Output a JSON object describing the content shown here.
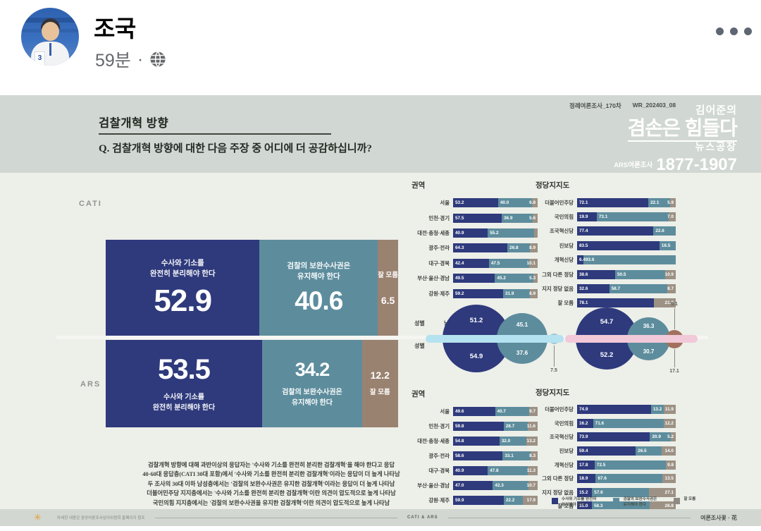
{
  "post": {
    "author": "조국",
    "time": "59분",
    "separator": "·"
  },
  "header": {
    "section_title": "검찰개혁 방향",
    "question": "Q. 검찰개혁 방향에 대한 다음 주장 중 어디에 더 공감하십니까?",
    "survey_series": "정례여론조사_170차",
    "survey_code": "WR_202403_08",
    "logo": {
      "line1": "김어준의",
      "line2": "겸손은 힘들다",
      "line3": "뉴스공장",
      "ars_label": "ARS여론조사",
      "phone": "1877-1907"
    }
  },
  "modes": {
    "cati": "CATI",
    "ars": "ARS"
  },
  "sections": {
    "region": "권역",
    "party": "정당지지도",
    "gender": "성별"
  },
  "gender_labels": {
    "male": "남성",
    "female": "여성"
  },
  "legend": [
    {
      "color": "navy",
      "label_line1": "수사와 기소를 완전히",
      "label_line2": "분리해야 한다"
    },
    {
      "color": "teal",
      "label_line1": "검찰의 보완수사권은",
      "label_line2": "유지해야 한다"
    },
    {
      "color": "gray",
      "label_line1": "잘 모름",
      "label_line2": ""
    }
  ],
  "summary_lines": [
    "검찰개혁 방향에 대해 과반이상의 응답자는 '수사와 기소를 완전히 분리한 검찰개혁'을 해야 한다고 응답",
    "40·60대 응답층(CATI 30대 포함)에서 '수사와 기소를 완전히 분리한 검찰개혁'이라는 응답이 더 높게 나타남",
    "두 조사의 30대 이하 남성층에서는 '검찰의 보완수사권은 유지한 검찰개혁'이라는 응답이 더 높게 나타남",
    "더불어민주당 지지층에서는 '수사와 기소를 완전히 분리한 검찰개혁'이란 의견이 압도적으로 높게 나타남",
    "국민의힘 지지층에서는 '검찰의 보완수사권을 유지한 검찰개혁'이란 의견이 압도적으로 높게 나타남"
  ],
  "footer": {
    "left_note": "자세한 내용은 중앙여론조사심의위원회 홈페이지 참조",
    "center": "CATI & ARS",
    "right": "여론조사꽃 · 花"
  },
  "colors": {
    "navy": "#2e3a7c",
    "teal": "#5d8d9d",
    "brown": "#9a8270",
    "gray3": "#9c9184",
    "legend_gray": "#8f8a83",
    "stripe_cati": "#b5e2f0",
    "stripe_ars": "#f1c9d9",
    "small_cati": "#9fc6d2",
    "small_ars": "#a2705e",
    "sun": "#e2a23b"
  },
  "chart_data": {
    "overall": {
      "type": "bar",
      "stacked": true,
      "options": [
        {
          "text_line1": "수사와 기소를",
          "text_line2": "완전히 분리해야 한다"
        },
        {
          "text_line1": "검찰의 보완수사권은",
          "text_line2": "유지해야 한다"
        },
        {
          "text_line1": "잘 모름",
          "text_line2": ""
        }
      ],
      "cati": [
        52.9,
        40.6,
        6.5
      ],
      "ars": [
        53.5,
        34.2,
        12.2
      ]
    },
    "region": {
      "type": "bar",
      "stacked": true,
      "title": "권역",
      "categories": [
        "서울",
        "인천·경기",
        "대전·충청·세종",
        "광주·전라",
        "대구·경북",
        "부산·울산·경남",
        "강원·제주"
      ],
      "cati": [
        [
          53.2,
          40.0,
          6.8
        ],
        [
          57.5,
          36.9,
          5.6
        ],
        [
          40.9,
          55.2,
          3.9
        ],
        [
          64.3,
          26.8,
          8.9
        ],
        [
          42.4,
          47.5,
          10.1
        ],
        [
          49.5,
          45.2,
          5.3
        ],
        [
          59.2,
          31.9,
          8.9
        ]
      ],
      "ars": [
        [
          49.6,
          40.7,
          9.7
        ],
        [
          59.8,
          28.7,
          11.6
        ],
        [
          54.8,
          32.0,
          13.2
        ],
        [
          58.6,
          33.1,
          8.3
        ],
        [
          40.9,
          47.8,
          11.3
        ],
        [
          47.0,
          42.3,
          10.7
        ],
        [
          59.9,
          22.2,
          17.9
        ]
      ]
    },
    "party": {
      "type": "bar",
      "stacked": true,
      "title": "정당지지도",
      "categories": [
        "더불어민주당",
        "국민의힘",
        "조국혁신당",
        "진보당",
        "개혁신당",
        "그외 다른 정당",
        "지지 정당 없음",
        "잘 모름"
      ],
      "cati": [
        [
          72.1,
          22.1,
          5.9
        ],
        [
          19.9,
          73.1,
          7.0
        ],
        [
          77.4,
          22.6,
          0
        ],
        [
          83.5,
          16.5,
          0
        ],
        [
          6.4,
          93.6,
          0
        ],
        [
          38.6,
          50.5,
          10.9
        ],
        [
          32.6,
          58.7,
          8.7
        ],
        [
          78.1,
          0,
          21.9
        ]
      ],
      "ars": [
        [
          74.9,
          13.2,
          11.9
        ],
        [
          16.2,
          71.6,
          12.2
        ],
        [
          73.9,
          20.9,
          5.2
        ],
        [
          59.4,
          26.5,
          14.0
        ],
        [
          17.8,
          72.5,
          9.8
        ],
        [
          18.9,
          67.6,
          13.5
        ],
        [
          15.2,
          57.6,
          27.1
        ],
        [
          15.0,
          58.3,
          26.8
        ]
      ]
    },
    "gender": {
      "type": "bubble",
      "title": "성별",
      "categories": [
        "남성",
        "여성"
      ],
      "cati": {
        "male": [
          51.2,
          45.1,
          3.7
        ],
        "female": [
          54.9,
          37.6,
          7.5
        ]
      },
      "ars": {
        "male": [
          54.7,
          36.3,
          9.1
        ],
        "female": [
          52.2,
          30.7,
          17.1
        ]
      }
    }
  }
}
